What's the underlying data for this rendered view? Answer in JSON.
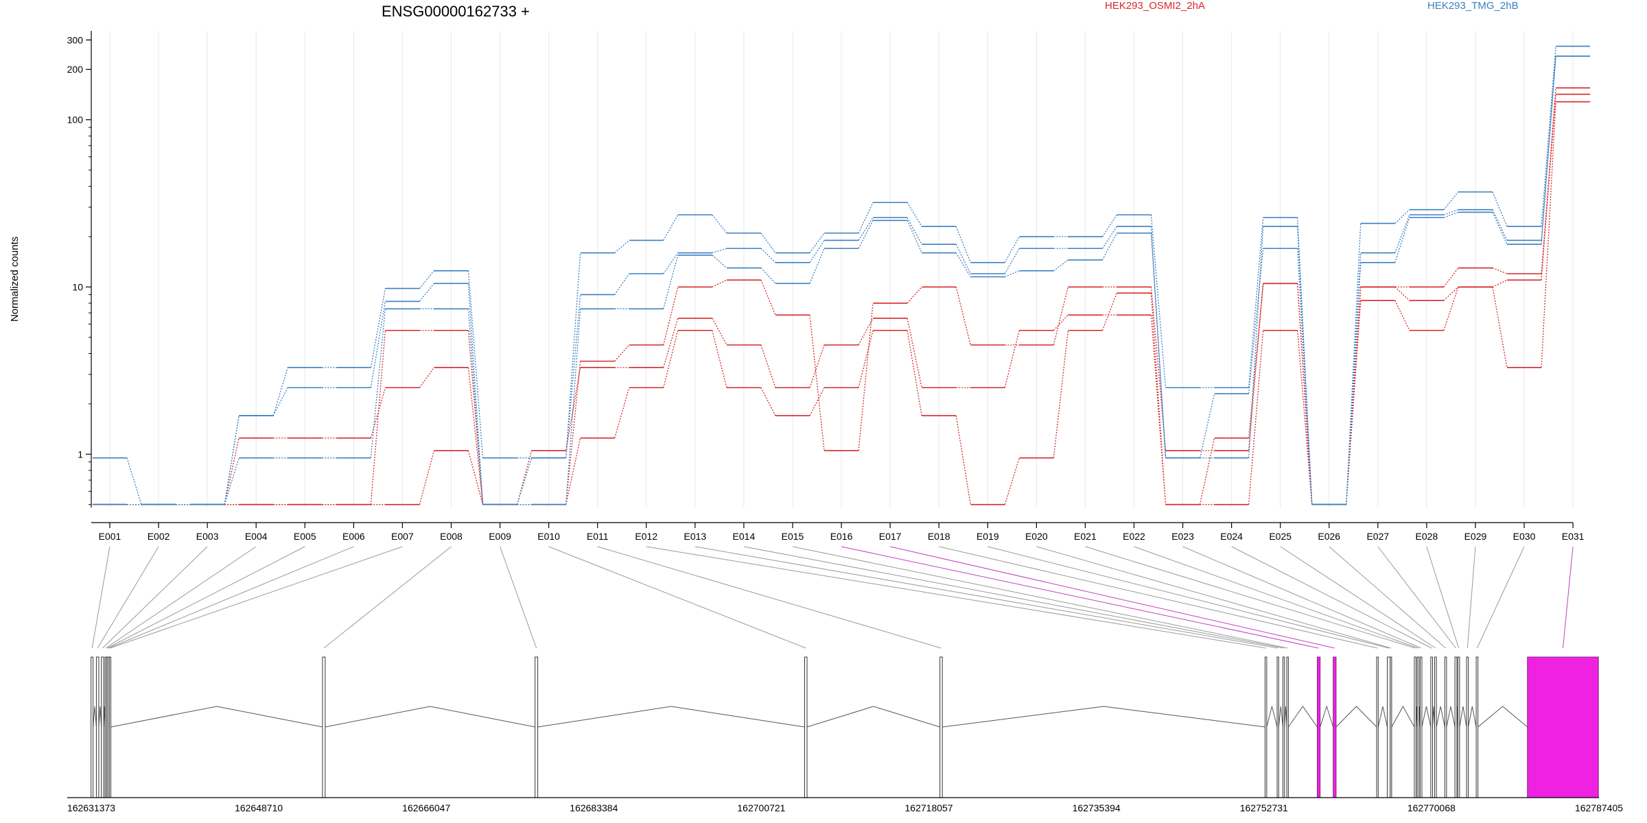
{
  "chart_data": {
    "type": "line",
    "title": "ENSG00000162733 +",
    "ylabel": "Normalized counts",
    "yscale": "log",
    "ylim": [
      0.48,
      340
    ],
    "y_ticks": [
      {
        "value": 1,
        "label": "1"
      },
      {
        "value": 10,
        "label": "10"
      },
      {
        "value": 100,
        "label": "100"
      },
      {
        "value": 200,
        "label": "200"
      },
      {
        "value": 300,
        "label": "300"
      }
    ],
    "categories": [
      "E001",
      "E002",
      "E003",
      "E004",
      "E005",
      "E006",
      "E007",
      "E008",
      "E009",
      "E010",
      "E011",
      "E012",
      "E013",
      "E014",
      "E015",
      "E016",
      "E017",
      "E018",
      "E019",
      "E020",
      "E021",
      "E022",
      "E023",
      "E024",
      "E025",
      "E026",
      "E027",
      "E028",
      "E029",
      "E030",
      "E031"
    ],
    "legend": [
      {
        "name": "HEK293_OSMI2_2hA",
        "color": "#d62728"
      },
      {
        "name": "HEK293_TMG_2hB",
        "color": "#3a7fc1"
      }
    ],
    "colors": {
      "condition_a": "#d62728",
      "condition_b": "#3a7fc1",
      "highlight": "#ee22e0",
      "structure": "#555555"
    },
    "series": [
      {
        "group": "condition_a",
        "values": [
          0.5,
          0.5,
          0.5,
          1.25,
          1.25,
          1.25,
          2.5,
          3.3,
          0.5,
          1.05,
          3.3,
          3.3,
          6.5,
          4.5,
          2.5,
          4.5,
          6.5,
          2.5,
          2.5,
          5.5,
          6.8,
          6.8,
          0.5,
          1.25,
          10.5,
          0.5,
          10,
          10,
          13,
          12,
          155
        ]
      },
      {
        "group": "condition_a",
        "values": [
          0.5,
          0.5,
          0.5,
          0.5,
          0.5,
          0.5,
          5.5,
          5.5,
          0.5,
          0.5,
          3.6,
          4.5,
          10,
          11,
          6.8,
          1.05,
          8,
          10,
          4.5,
          4.5,
          10,
          10,
          1.05,
          1.05,
          10.5,
          0.5,
          8.3,
          5.5,
          10,
          3.3,
          128
        ]
      },
      {
        "group": "condition_a",
        "values": [
          0.5,
          0.5,
          0.5,
          0.5,
          0.5,
          0.5,
          0.5,
          1.05,
          0.5,
          0.5,
          1.25,
          2.5,
          5.5,
          2.5,
          1.7,
          2.5,
          5.5,
          1.7,
          0.5,
          0.95,
          5.5,
          9.2,
          0.5,
          0.5,
          5.5,
          0.5,
          10,
          8.3,
          10,
          11,
          142
        ]
      },
      {
        "group": "condition_b",
        "values": [
          0.95,
          0.5,
          0.5,
          1.7,
          3.3,
          3.3,
          9.8,
          12.5,
          0.95,
          0.95,
          16,
          19,
          27,
          21,
          16,
          21,
          32,
          23,
          14,
          20,
          20,
          27,
          2.5,
          2.5,
          26,
          0.5,
          24,
          29,
          37,
          23,
          275
        ]
      },
      {
        "group": "condition_b",
        "values": [
          0.5,
          0.5,
          0.5,
          1.7,
          2.5,
          2.5,
          8.2,
          10.5,
          0.5,
          0.95,
          9,
          12,
          16,
          17,
          14,
          19,
          26,
          18,
          12,
          17,
          17,
          23,
          0.95,
          0.95,
          23,
          0.5,
          16,
          27,
          29,
          19,
          240
        ]
      },
      {
        "group": "condition_b",
        "values": [
          0.5,
          0.5,
          0.5,
          0.95,
          0.95,
          0.95,
          7.4,
          7.4,
          0.5,
          0.5,
          7.4,
          7.4,
          15.5,
          13,
          10.5,
          17,
          25,
          16,
          11.5,
          12.5,
          14.5,
          21,
          0.95,
          2.3,
          17,
          0.5,
          14,
          26,
          28,
          18,
          240
        ]
      }
    ],
    "genomic_axis": {
      "range": [
        162631373,
        162787405
      ],
      "tick_labels": [
        "162631373",
        "162648710",
        "162666047",
        "162683384",
        "162700721",
        "162718057",
        "162735394",
        "162752731",
        "162770068",
        "162787405"
      ],
      "exons": [
        {
          "id": "E001",
          "start": 162631350,
          "end": 162631560,
          "highlight": false
        },
        {
          "id": "E002",
          "start": 162631900,
          "end": 162632150,
          "highlight": false
        },
        {
          "id": "E003",
          "start": 162632420,
          "end": 162632660,
          "highlight": false
        },
        {
          "id": "E004",
          "start": 162632800,
          "end": 162632950,
          "highlight": false
        },
        {
          "id": "E005",
          "start": 162632950,
          "end": 162633100,
          "highlight": false
        },
        {
          "id": "E006",
          "start": 162633100,
          "end": 162633250,
          "highlight": false
        },
        {
          "id": "E007",
          "start": 162633250,
          "end": 162633400,
          "highlight": false
        },
        {
          "id": "E008",
          "start": 162655300,
          "end": 162655580,
          "highlight": false
        },
        {
          "id": "E009",
          "start": 162677300,
          "end": 162677580,
          "highlight": false
        },
        {
          "id": "E010",
          "start": 162705200,
          "end": 162705450,
          "highlight": false
        },
        {
          "id": "E011",
          "start": 162719200,
          "end": 162719450,
          "highlight": false
        },
        {
          "id": "E012",
          "start": 162752850,
          "end": 162753020,
          "highlight": false
        },
        {
          "id": "E013",
          "start": 162754100,
          "end": 162754260,
          "highlight": false
        },
        {
          "id": "E014",
          "start": 162754700,
          "end": 162754860,
          "highlight": false
        },
        {
          "id": "E015",
          "start": 162755100,
          "end": 162755260,
          "highlight": false
        },
        {
          "id": "E016",
          "start": 162758250,
          "end": 162758550,
          "highlight": true
        },
        {
          "id": "E017",
          "start": 162759900,
          "end": 162760200,
          "highlight": true
        },
        {
          "id": "E018",
          "start": 162764400,
          "end": 162764560,
          "highlight": false
        },
        {
          "id": "E019",
          "start": 162765500,
          "end": 162765800,
          "highlight": false
        },
        {
          "id": "E020",
          "start": 162765800,
          "end": 162765950,
          "highlight": false
        },
        {
          "id": "E021",
          "start": 162768300,
          "end": 162768480,
          "highlight": false
        },
        {
          "id": "E022",
          "start": 162768600,
          "end": 162768780,
          "highlight": false
        },
        {
          "id": "E023",
          "start": 162768900,
          "end": 162769080,
          "highlight": false
        },
        {
          "id": "E024",
          "start": 162770000,
          "end": 162770180,
          "highlight": false
        },
        {
          "id": "E025",
          "start": 162770400,
          "end": 162770580,
          "highlight": false
        },
        {
          "id": "E026",
          "start": 162771450,
          "end": 162771630,
          "highlight": false
        },
        {
          "id": "E027",
          "start": 162772500,
          "end": 162772700,
          "highlight": false
        },
        {
          "id": "E028",
          "start": 162772800,
          "end": 162772980,
          "highlight": false
        },
        {
          "id": "E029",
          "start": 162773700,
          "end": 162773880,
          "highlight": false
        },
        {
          "id": "E030",
          "start": 162774700,
          "end": 162774880,
          "highlight": false
        },
        {
          "id": "E031",
          "start": 162780000,
          "end": 162787350,
          "highlight": true
        }
      ]
    }
  }
}
